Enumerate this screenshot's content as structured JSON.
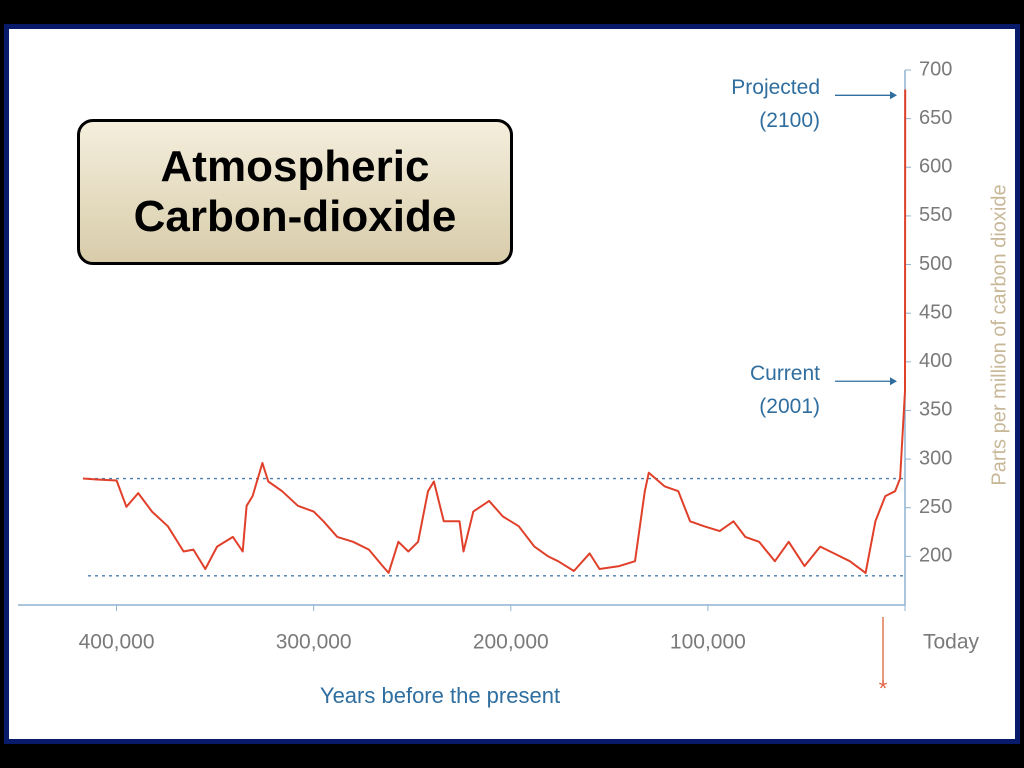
{
  "chart_data": {
    "type": "line",
    "title": "Atmospheric Carbon-dioxide",
    "xlabel": "Years before the present",
    "ylabel": "Parts per million of carbon dioxide",
    "x": [
      417000,
      410000,
      400000,
      395000,
      389000,
      382000,
      374000,
      366000,
      361000,
      355000,
      349000,
      341000,
      336000,
      334000,
      331000,
      326000,
      323000,
      316000,
      308000,
      300000,
      295000,
      288000,
      280000,
      272000,
      265000,
      262000,
      257000,
      252000,
      247000,
      242000,
      239000,
      234000,
      226000,
      224000,
      219000,
      211000,
      204000,
      196000,
      188000,
      181000,
      176000,
      168000,
      160000,
      155000,
      145000,
      137000,
      132000,
      130000,
      122000,
      115000,
      109000,
      102000,
      94000,
      87000,
      81000,
      74000,
      66000,
      59000,
      51000,
      43000,
      36000,
      28000,
      20000,
      15000,
      10000,
      5000,
      2500,
      0,
      -100
    ],
    "values": [
      280,
      279,
      278,
      251,
      265,
      246,
      231,
      205,
      207,
      187,
      210,
      220,
      205,
      252,
      262,
      296,
      277,
      267,
      252,
      246,
      236,
      220,
      215,
      207,
      190,
      183,
      215,
      205,
      215,
      267,
      277,
      236,
      236,
      205,
      246,
      257,
      241,
      231,
      210,
      200,
      195,
      185,
      203,
      187,
      190,
      195,
      267,
      286,
      272,
      267,
      236,
      231,
      226,
      236,
      220,
      215,
      195,
      215,
      190,
      210,
      203,
      195,
      183,
      236,
      262,
      267,
      280,
      370,
      680
    ],
    "color": "#e0402a",
    "xlim": [
      450000,
      0
    ],
    "xticks": [
      {
        "value": 400000,
        "label": "400,000"
      },
      {
        "value": 300000,
        "label": "300,000"
      },
      {
        "value": 200000,
        "label": "200,000"
      },
      {
        "value": 100000,
        "label": "100,000"
      },
      {
        "value": 0,
        "label": "Today"
      }
    ],
    "ylim": [
      150,
      700
    ],
    "yticks": [
      200,
      250,
      300,
      350,
      400,
      450,
      500,
      550,
      600,
      650,
      700
    ],
    "reference_lines": [
      280,
      180
    ],
    "annotations": [
      {
        "text": "Projected (2100)",
        "y": 674
      },
      {
        "text": "Current (2001)",
        "y": 380
      }
    ]
  }
}
